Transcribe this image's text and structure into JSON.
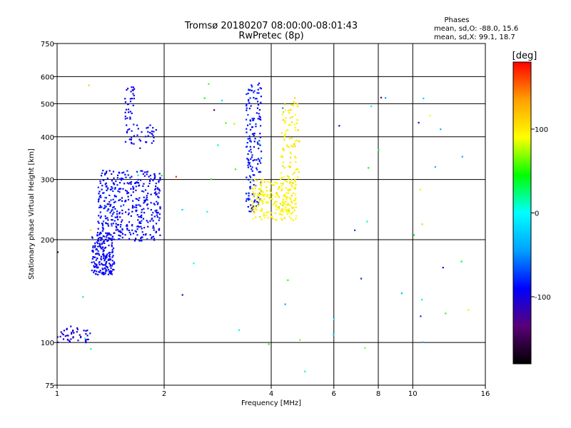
{
  "chart_data": {
    "type": "scatter",
    "title": "Tromsø 20180207 08:00:00-08:01:43",
    "subtitle": "RwPretec (8p)",
    "xlabel": "Frequency [MHz]",
    "ylabel": "Stationary phase Virtual Height [km]",
    "x_scale": "log",
    "y_scale": "log",
    "xlim": [
      1,
      16
    ],
    "ylim": [
      75,
      750
    ],
    "x_ticks": [
      {
        "value": 1,
        "label": "1"
      },
      {
        "value": 2,
        "label": "2"
      },
      {
        "value": 4,
        "label": "4"
      },
      {
        "value": 6,
        "label": "6"
      },
      {
        "value": 8,
        "label": "8"
      },
      {
        "value": 10,
        "label": "10"
      },
      {
        "value": 16,
        "label": "16"
      }
    ],
    "y_ticks": [
      {
        "value": 75,
        "label": "75"
      },
      {
        "value": 100,
        "label": "100"
      },
      {
        "value": 200,
        "label": "200"
      },
      {
        "value": 300,
        "label": "300"
      },
      {
        "value": 400,
        "label": "400"
      },
      {
        "value": 500,
        "label": "500"
      },
      {
        "value": 600,
        "label": "600"
      },
      {
        "value": 750,
        "label": "750"
      }
    ],
    "grid": true,
    "phases": {
      "title": "Phases",
      "line_o": "mean, sd,O: -88.0, 15.6",
      "line_x": "mean, sd,X:  99.1, 18.7"
    },
    "colorbar": {
      "label": "[deg]",
      "range": [
        -180,
        180
      ],
      "colormap": [
        "#000000",
        "#5a0078",
        "#0000ff",
        "#00a0ff",
        "#00ffff",
        "#00ff00",
        "#ffff00",
        "#ffa000",
        "#ff0000"
      ],
      "ticks": [
        {
          "value": 100,
          "label": "100"
        },
        {
          "value": 0,
          "label": "0"
        },
        {
          "value": -100,
          "label": "-100"
        }
      ]
    },
    "series": [
      {
        "name": "low-E echoes",
        "f_range": [
          1.0,
          1.25
        ],
        "h_range": [
          100,
          112
        ],
        "phase_mean": -105,
        "phase_sd": 18,
        "count": 45
      },
      {
        "name": "O-mode F-region lower trace",
        "f_range": [
          1.25,
          1.45
        ],
        "h_range": [
          158,
          210
        ],
        "phase_mean": -92,
        "phase_sd": 12,
        "count": 200
      },
      {
        "name": "O-mode F-region upper band",
        "f_range": [
          1.3,
          1.95
        ],
        "h_range": [
          198,
          320
        ],
        "phase_mean": -90,
        "phase_sd": 16,
        "count": 420
      },
      {
        "name": "O-mode spread tail",
        "f_range": [
          1.55,
          1.9
        ],
        "h_range": [
          380,
          440
        ],
        "phase_mean": -92,
        "phase_sd": 10,
        "count": 40
      },
      {
        "name": "O-mode vertical column",
        "f_range": [
          1.55,
          1.65
        ],
        "h_range": [
          440,
          560
        ],
        "phase_mean": -95,
        "phase_sd": 10,
        "count": 30
      },
      {
        "name": "O-mode high-f column",
        "f_range": [
          3.4,
          3.75
        ],
        "h_range": [
          240,
          580
        ],
        "phase_mean": -85,
        "phase_sd": 16,
        "count": 170
      },
      {
        "name": "X-mode trace",
        "f_range": [
          3.5,
          4.7
        ],
        "h_range": [
          228,
          300
        ],
        "phase_mean": 95,
        "phase_sd": 14,
        "count": 230
      },
      {
        "name": "X-mode vertical column",
        "f_range": [
          4.25,
          4.8
        ],
        "h_range": [
          300,
          520
        ],
        "phase_mean": 100,
        "phase_sd": 16,
        "count": 90
      },
      {
        "name": "sparse noise",
        "f_range": [
          1.0,
          15.0
        ],
        "h_range": [
          80,
          600
        ],
        "phase_mean": 0,
        "phase_sd": 140,
        "count": 60
      }
    ]
  }
}
